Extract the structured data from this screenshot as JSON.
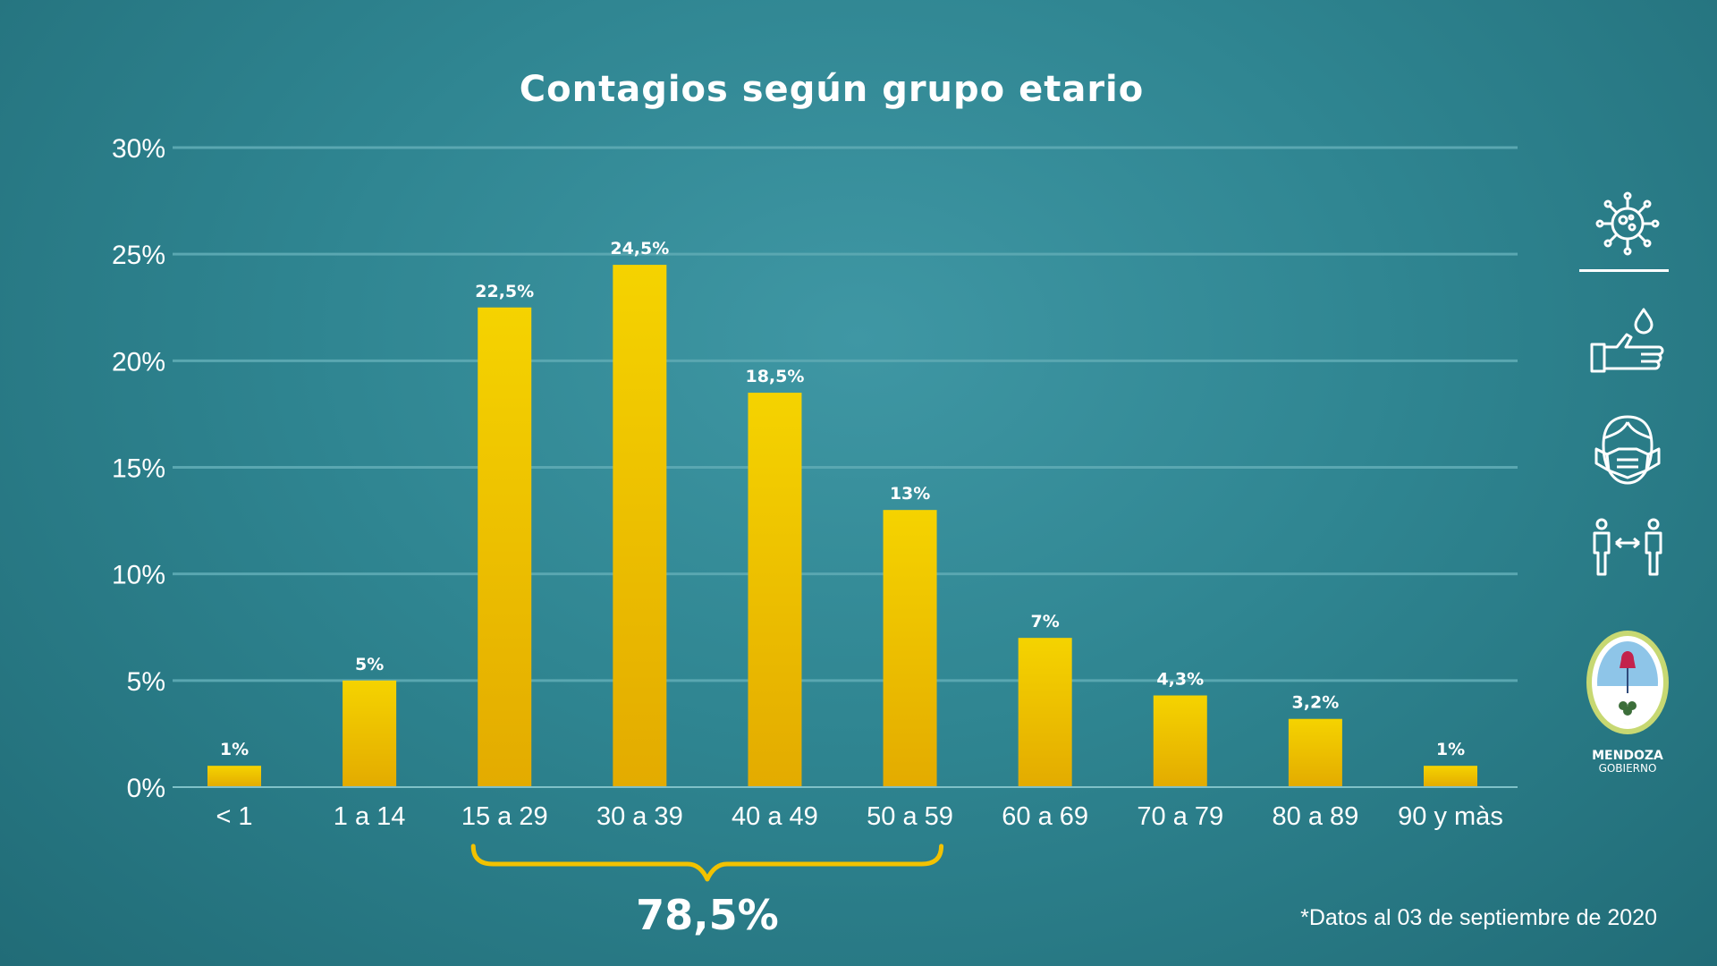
{
  "chart_data": {
    "type": "bar",
    "title": "Contagios según grupo etario",
    "categories": [
      "< 1",
      "1 a 14",
      "15 a 29",
      "30 a 39",
      "40 a 49",
      "50 a 59",
      "60 a 69",
      "70 a 79",
      "80 a 89",
      "90 y màs"
    ],
    "values": [
      1,
      5,
      22.5,
      24.5,
      18.5,
      13,
      7,
      4.3,
      3.2,
      1
    ],
    "data_labels": [
      "1%",
      "5%",
      "22,5%",
      "24,5%",
      "18,5%",
      "13%",
      "7%",
      "4,3%",
      "3,2%",
      "1%"
    ],
    "yticks": [
      "0%",
      "5%",
      "10%",
      "15%",
      "20%",
      "25%",
      "30%"
    ],
    "ylim": [
      0,
      30
    ],
    "grid": true,
    "bar_color": "#f2cc00",
    "annotation": {
      "text": "78,5%",
      "from_category": "15 a 29",
      "to_category": "50 a 59",
      "color": "#f2c200"
    },
    "footnote": "*Datos al 03 de septiembre de 2020"
  },
  "sidebar": {
    "icons": [
      "virus-icon",
      "hand-wash-icon",
      "face-mask-icon",
      "social-distance-icon"
    ],
    "logo": {
      "line1": "MENDOZA",
      "line2": "GOBIERNO"
    }
  },
  "colors": {
    "background": "#2f8591",
    "accent": "#f2c200",
    "grid": "#5aa7b1"
  }
}
